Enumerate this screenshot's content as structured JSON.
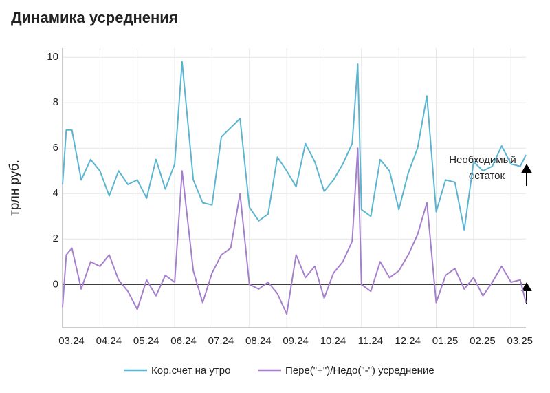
{
  "chart_data": {
    "type": "line",
    "title": "Динамика усреднения",
    "y_label": "трлн руб.",
    "annotation": [
      "Необходимый",
      "остаток"
    ],
    "x": [
      0,
      0.1,
      0.25,
      0.5,
      0.75,
      1,
      1.25,
      1.5,
      1.75,
      2,
      2.25,
      2.5,
      2.75,
      3,
      3.2,
      3.5,
      3.75,
      4,
      4.25,
      4.5,
      4.75,
      5,
      5.25,
      5.5,
      5.75,
      6,
      6.25,
      6.5,
      6.75,
      7,
      7.25,
      7.5,
      7.75,
      7.9,
      8,
      8.25,
      8.5,
      8.75,
      9,
      9.25,
      9.5,
      9.75,
      10,
      10.25,
      10.5,
      10.75,
      11,
      11.25,
      11.5,
      11.75,
      12,
      12.25,
      12.4
    ],
    "series": [
      {
        "name": "Кор.счет на утро",
        "color": "#5bb5d1",
        "values": [
          4.4,
          6.8,
          6.8,
          4.6,
          5.5,
          5.0,
          3.9,
          5.0,
          4.4,
          4.6,
          3.8,
          5.5,
          4.2,
          5.3,
          9.8,
          4.6,
          3.6,
          3.5,
          6.5,
          6.9,
          7.3,
          3.4,
          2.8,
          3.1,
          5.6,
          5.0,
          4.3,
          6.2,
          5.4,
          4.1,
          4.6,
          5.3,
          6.2,
          9.7,
          3.3,
          3.0,
          5.5,
          5.0,
          3.3,
          4.9,
          6.0,
          8.3,
          3.2,
          4.6,
          4.5,
          2.4,
          5.4,
          5.0,
          5.2,
          6.1,
          5.3,
          5.2,
          5.7
        ]
      },
      {
        "name": "Пере(\"+\")/Недо(\"-\") усреднение",
        "color": "#a57fcc",
        "values": [
          -1.0,
          1.3,
          1.6,
          -0.2,
          1.0,
          0.8,
          1.3,
          0.2,
          -0.3,
          -1.1,
          0.2,
          -0.5,
          0.4,
          0.1,
          5.0,
          0.6,
          -0.8,
          0.5,
          1.3,
          1.6,
          4.0,
          0,
          -0.2,
          0.1,
          -0.4,
          -1.3,
          1.3,
          0.3,
          0.8,
          -0.6,
          0.5,
          1.0,
          1.9,
          6.0,
          0,
          -0.3,
          1.0,
          0.3,
          0.6,
          1.3,
          2.2,
          3.6,
          -0.8,
          0.4,
          0.7,
          -0.2,
          0.3,
          -0.5,
          0.1,
          0.8,
          0.1,
          0.2,
          -0.8
        ]
      }
    ],
    "xlim": [
      0,
      12.4
    ],
    "xticks": [
      {
        "value": 0,
        "label": "03.24"
      },
      {
        "value": 1,
        "label": "04.24"
      },
      {
        "value": 2,
        "label": "05.24"
      },
      {
        "value": 3,
        "label": "06.24"
      },
      {
        "value": 4,
        "label": "07.24"
      },
      {
        "value": 5,
        "label": "08.24"
      },
      {
        "value": 6,
        "label": "09.24"
      },
      {
        "value": 7,
        "label": "10.24"
      },
      {
        "value": 8,
        "label": "11.24"
      },
      {
        "value": 9,
        "label": "12.24"
      },
      {
        "value": 10,
        "label": "01.25"
      },
      {
        "value": 11,
        "label": "02.25"
      },
      {
        "value": 12,
        "label": "03.25"
      }
    ],
    "ylim": [
      -1.9,
      10.4
    ],
    "yticks": [
      0,
      2,
      4,
      6,
      8,
      10
    ],
    "grid": true,
    "zero_line": true,
    "legend": "bottom"
  }
}
